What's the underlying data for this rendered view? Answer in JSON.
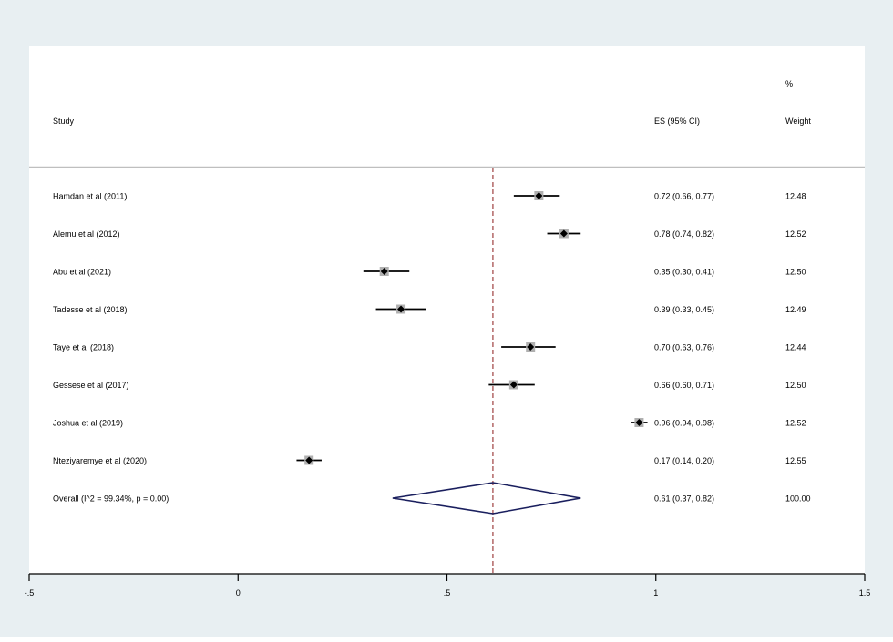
{
  "chart_data": {
    "type": "forest",
    "headers": {
      "study": "Study",
      "es": "ES (95% CI)",
      "weight_top": "%",
      "weight_bottom": "Weight"
    },
    "studies": [
      {
        "label": "Hamdan et al (2011)",
        "es": 0.72,
        "lo": 0.66,
        "hi": 0.77,
        "es_text": "0.72 (0.66, 0.77)",
        "weight": "12.48"
      },
      {
        "label": "Alemu et al (2012)",
        "es": 0.78,
        "lo": 0.74,
        "hi": 0.82,
        "es_text": "0.78 (0.74, 0.82)",
        "weight": "12.52"
      },
      {
        "label": "Abu et al (2021)",
        "es": 0.35,
        "lo": 0.3,
        "hi": 0.41,
        "es_text": "0.35 (0.30, 0.41)",
        "weight": "12.50"
      },
      {
        "label": "Tadesse et al (2018)",
        "es": 0.39,
        "lo": 0.33,
        "hi": 0.45,
        "es_text": "0.39 (0.33, 0.45)",
        "weight": "12.49"
      },
      {
        "label": "Taye et al (2018)",
        "es": 0.7,
        "lo": 0.63,
        "hi": 0.76,
        "es_text": "0.70 (0.63, 0.76)",
        "weight": "12.44"
      },
      {
        "label": "Gessese et al (2017)",
        "es": 0.66,
        "lo": 0.6,
        "hi": 0.71,
        "es_text": "0.66 (0.60, 0.71)",
        "weight": "12.50"
      },
      {
        "label": "Joshua et al (2019)",
        "es": 0.96,
        "lo": 0.94,
        "hi": 0.98,
        "es_text": "0.96 (0.94, 0.98)",
        "weight": "12.52"
      },
      {
        "label": "Nteziyaremye et al (2020)",
        "es": 0.17,
        "lo": 0.14,
        "hi": 0.2,
        "es_text": "0.17 (0.14, 0.20)",
        "weight": "12.55"
      }
    ],
    "overall": {
      "label": "Overall  (I^2 = 99.34%, p = 0.00)",
      "es": 0.61,
      "lo": 0.37,
      "hi": 0.82,
      "es_text": "0.61 (0.37, 0.82)",
      "weight": "100.00"
    },
    "x_axis": {
      "range": [
        -0.5,
        1.5
      ],
      "ticks": [
        -0.5,
        0,
        0.5,
        1,
        1.5
      ],
      "tick_labels": [
        "-.5",
        "0",
        ".5",
        "1",
        "1.5"
      ]
    },
    "reference_line": 0.61,
    "colors": {
      "outer_background": "#e8eff2",
      "plot_background": "#ffffff",
      "ci_line": "#000000",
      "weight_box": "#b0b0b0",
      "diamond": "#1a1f5e",
      "reference_line": "#8b1a1a",
      "separator": "#bfbfbf"
    }
  }
}
